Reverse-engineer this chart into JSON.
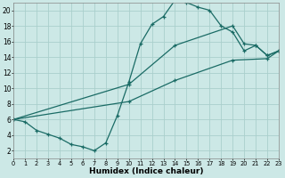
{
  "xlabel": "Humidex (Indice chaleur)",
  "background_color": "#cce8e6",
  "grid_color": "#aacfcc",
  "line_color": "#1a6b65",
  "xlim": [
    0,
    23
  ],
  "ylim": [
    1,
    21
  ],
  "xticks": [
    0,
    1,
    2,
    3,
    4,
    5,
    6,
    7,
    8,
    9,
    10,
    11,
    12,
    13,
    14,
    15,
    16,
    17,
    18,
    19,
    20,
    21,
    22,
    23
  ],
  "yticks": [
    2,
    4,
    6,
    8,
    10,
    12,
    14,
    16,
    18,
    20
  ],
  "curve_main_x": [
    0,
    1,
    2,
    3,
    4,
    5,
    6,
    7,
    8,
    9,
    10,
    11,
    12,
    13,
    14,
    15,
    16,
    17,
    18,
    19,
    20,
    21,
    22,
    23
  ],
  "curve_main_y": [
    6.0,
    5.7,
    4.6,
    4.1,
    3.6,
    2.8,
    2.5,
    2.0,
    3.0,
    6.5,
    10.8,
    15.7,
    18.2,
    19.2,
    21.3,
    21.0,
    20.4,
    20.0,
    18.0,
    17.2,
    14.8,
    15.5,
    14.2,
    14.8
  ],
  "curve_upper_x": [
    0,
    10,
    14,
    19,
    20,
    21,
    22,
    23
  ],
  "curve_upper_y": [
    6.0,
    10.5,
    15.5,
    18.0,
    15.7,
    15.5,
    14.2,
    14.8
  ],
  "curve_lower_x": [
    0,
    10,
    14,
    19,
    22,
    23
  ],
  "curve_lower_y": [
    6.0,
    8.3,
    11.0,
    13.6,
    13.8,
    14.8
  ]
}
